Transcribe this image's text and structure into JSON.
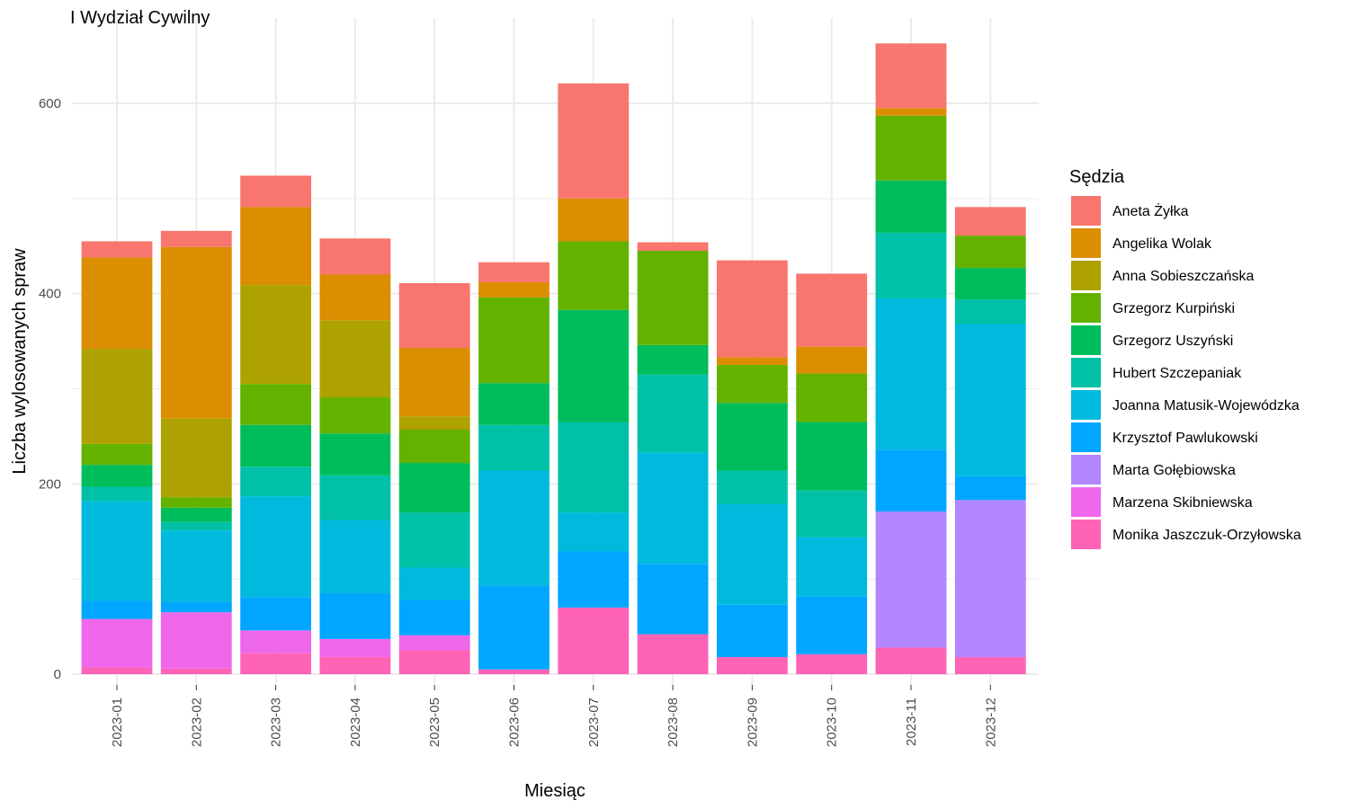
{
  "chart_data": {
    "type": "bar",
    "stacked": true,
    "title": "I Wydział Cywilny",
    "xlabel": "Miesiąc",
    "ylabel": "Liczba wylosowanych spraw",
    "ylim": [
      0,
      670
    ],
    "yticks": [
      0,
      200,
      400,
      600
    ],
    "grid": true,
    "legend_title": "Sędzia",
    "legend_position": "right",
    "categories": [
      "2023-01",
      "2023-02",
      "2023-03",
      "2023-04",
      "2023-05",
      "2023-06",
      "2023-07",
      "2023-08",
      "2023-09",
      "2023-10",
      "2023-11",
      "2023-12"
    ],
    "series": [
      {
        "name": "Aneta Żyłka",
        "color": "#F8766D",
        "values": [
          17,
          17,
          33,
          38,
          68,
          21,
          121,
          9,
          102,
          77,
          68,
          30
        ]
      },
      {
        "name": "Angelika Wolak",
        "color": "#DB8E00",
        "values": [
          96,
          180,
          82,
          48,
          72,
          16,
          45,
          0,
          8,
          28,
          8,
          0
        ]
      },
      {
        "name": "Anna Sobieszczańska",
        "color": "#AEA200",
        "values": [
          100,
          83,
          104,
          81,
          14,
          0,
          0,
          0,
          0,
          0,
          0,
          0
        ]
      },
      {
        "name": "Grzegorz Kurpiński",
        "color": "#64B200",
        "values": [
          22,
          11,
          43,
          38,
          35,
          90,
          72,
          99,
          40,
          51,
          68,
          34
        ]
      },
      {
        "name": "Grzegorz Uszyński",
        "color": "#00BD5C",
        "values": [
          23,
          15,
          44,
          44,
          52,
          44,
          118,
          31,
          71,
          72,
          55,
          33
        ]
      },
      {
        "name": "Hubert Szczepaniak",
        "color": "#00C1A7",
        "values": [
          15,
          9,
          31,
          47,
          58,
          48,
          95,
          82,
          35,
          49,
          69,
          26
        ]
      },
      {
        "name": "Joanna Matusik-Wojewódzka",
        "color": "#00BADE",
        "values": [
          105,
          75,
          106,
          77,
          34,
          121,
          41,
          117,
          106,
          62,
          159,
          160
        ]
      },
      {
        "name": "Krzysztof Pawlukowski",
        "color": "#00A6FF",
        "values": [
          19,
          11,
          35,
          48,
          37,
          88,
          59,
          74,
          55,
          61,
          65,
          25
        ]
      },
      {
        "name": "Marta Gołębiowska",
        "color": "#B385FF",
        "values": [
          0,
          0,
          0,
          0,
          0,
          0,
          0,
          0,
          0,
          0,
          143,
          165
        ]
      },
      {
        "name": "Marzena Skibniewska",
        "color": "#EF67EB",
        "values": [
          51,
          59,
          24,
          19,
          16,
          0,
          0,
          0,
          0,
          0,
          0,
          0
        ]
      },
      {
        "name": "Monika Jaszczuk-Orzyłowska",
        "color": "#FF63B6",
        "values": [
          7,
          6,
          22,
          18,
          25,
          5,
          70,
          42,
          18,
          21,
          28,
          18
        ]
      }
    ]
  }
}
